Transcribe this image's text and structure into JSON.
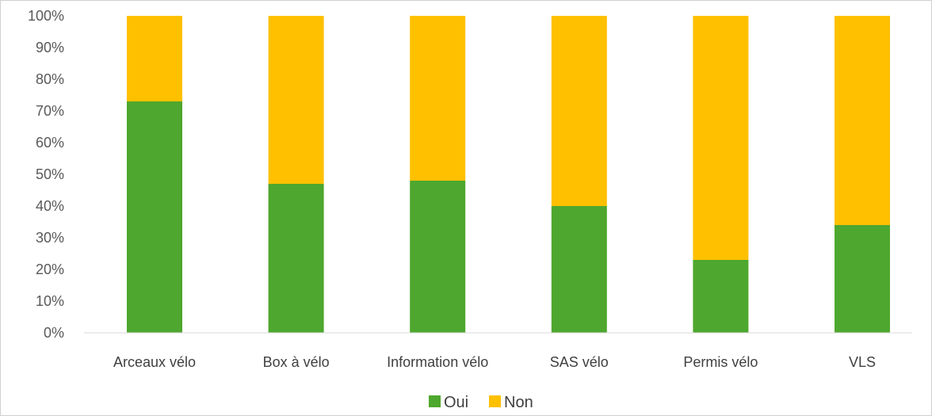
{
  "chart_data": {
    "type": "bar",
    "stacked": true,
    "normalized_percent": true,
    "categories": [
      "Arceaux vélo",
      "Box à vélo",
      "Information vélo",
      "SAS vélo",
      "Permis vélo",
      "VLS"
    ],
    "series": [
      {
        "name": "Oui",
        "color": "#4ea72e",
        "values": [
          73,
          47,
          48,
          40,
          23,
          34
        ]
      },
      {
        "name": "Non",
        "color": "#ffc000",
        "values": [
          27,
          53,
          52,
          60,
          77,
          66
        ]
      }
    ],
    "ylim": [
      0,
      100
    ],
    "yticks": [
      "0%",
      "10%",
      "20%",
      "30%",
      "40%",
      "50%",
      "60%",
      "70%",
      "80%",
      "90%",
      "100%"
    ],
    "grid": "none",
    "legend_position": "bottom",
    "title": "",
    "xlabel": "",
    "ylabel": ""
  }
}
